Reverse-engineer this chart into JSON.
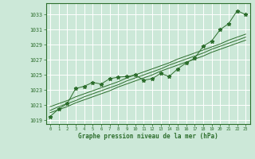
{
  "xlabel": "Graphe pression niveau de la mer (hPa)",
  "ylabel": "",
  "background_color": "#cce8d8",
  "plot_bg_color": "#cce8d8",
  "grid_color": "#ffffff",
  "line_color": "#2d6e2d",
  "marker_color": "#2d6e2d",
  "ylim": [
    1018.5,
    1034.5
  ],
  "xlim": [
    -0.5,
    23.5
  ],
  "yticks": [
    1019,
    1021,
    1023,
    1025,
    1027,
    1029,
    1031,
    1033
  ],
  "xticks": [
    0,
    1,
    2,
    3,
    4,
    5,
    6,
    7,
    8,
    9,
    10,
    11,
    12,
    13,
    14,
    15,
    16,
    17,
    18,
    19,
    20,
    21,
    22,
    23
  ],
  "x": [
    0,
    1,
    2,
    3,
    4,
    5,
    6,
    7,
    8,
    9,
    10,
    11,
    12,
    13,
    14,
    15,
    16,
    17,
    18,
    19,
    20,
    21,
    22,
    23
  ],
  "y_main": [
    1019.5,
    1020.5,
    1021.2,
    1023.2,
    1023.5,
    1024.0,
    1023.8,
    1024.5,
    1024.7,
    1024.8,
    1025.0,
    1024.3,
    1024.5,
    1025.2,
    1024.8,
    1025.8,
    1026.6,
    1027.2,
    1028.8,
    1029.5,
    1031.0,
    1031.8,
    1033.5,
    1033.0
  ],
  "y_line1": [
    1020.8,
    1021.2,
    1021.6,
    1022.1,
    1022.5,
    1022.9,
    1023.3,
    1023.7,
    1024.1,
    1024.6,
    1025.0,
    1025.4,
    1025.8,
    1026.2,
    1026.6,
    1027.1,
    1027.5,
    1027.9,
    1028.3,
    1028.7,
    1029.1,
    1029.6,
    1030.0,
    1030.4
  ],
  "y_line2": [
    1020.3,
    1020.8,
    1021.2,
    1021.6,
    1022.1,
    1022.5,
    1022.9,
    1023.3,
    1023.7,
    1024.2,
    1024.6,
    1025.0,
    1025.4,
    1025.8,
    1026.3,
    1026.7,
    1027.1,
    1027.5,
    1027.9,
    1028.4,
    1028.8,
    1029.2,
    1029.6,
    1030.0
  ],
  "y_line3": [
    1020.0,
    1020.4,
    1020.8,
    1021.3,
    1021.7,
    1022.1,
    1022.5,
    1022.9,
    1023.4,
    1023.8,
    1024.2,
    1024.6,
    1025.0,
    1025.5,
    1025.9,
    1026.3,
    1026.7,
    1027.1,
    1027.5,
    1028.0,
    1028.4,
    1028.8,
    1029.2,
    1029.6
  ]
}
